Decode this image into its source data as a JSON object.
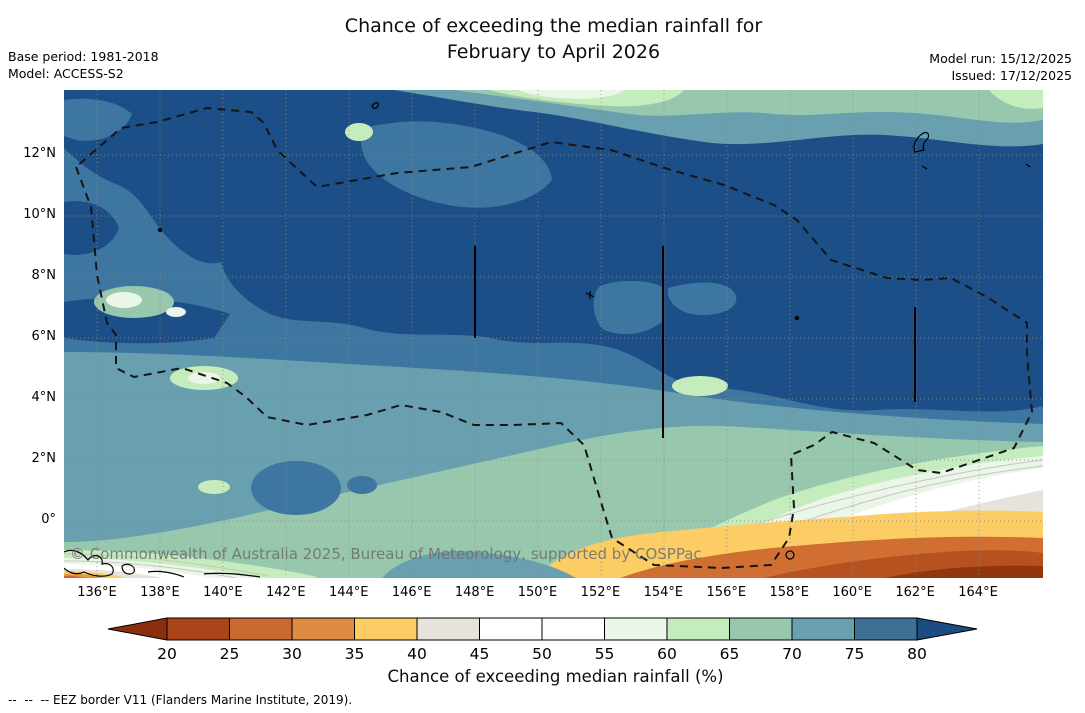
{
  "title": {
    "line1": "Chance of exceeding the median rainfall for",
    "line2": "February to April 2026"
  },
  "meta_left": {
    "base_period": "Base period: 1981-2018",
    "model": "Model: ACCESS-S2"
  },
  "meta_right": {
    "model_run": "Model run: 15/12/2025",
    "issued": "Issued: 17/12/2025"
  },
  "map": {
    "watermark": "© Commonwealth of Australia 2025, Bureau of Meteorology, supported by COSPPac",
    "x_ticks": [
      "136°E",
      "138°E",
      "140°E",
      "142°E",
      "144°E",
      "146°E",
      "148°E",
      "150°E",
      "152°E",
      "154°E",
      "156°E",
      "158°E",
      "160°E",
      "162°E",
      "164°E"
    ],
    "y_ticks": [
      "12°N",
      "10°N",
      "8°N",
      "6°N",
      "4°N",
      "2°N",
      "0°"
    ],
    "border_note": "dashed line = EEZ border, dotted lines = 2-degree graticule"
  },
  "colorbar": {
    "label": "Chance of exceeding median rainfall (%)",
    "ticks": [
      "20",
      "25",
      "30",
      "35",
      "40",
      "45",
      "50",
      "55",
      "60",
      "65",
      "70",
      "75",
      "80"
    ],
    "segment_colors": [
      "#aa4519",
      "#c96a33",
      "#de8c43",
      "#fbcd64",
      "#e6e2dc",
      "#ffffff",
      "#ffffff",
      "#eaf6e8",
      "#c5ecbd",
      "#97c8ae",
      "#68a0af",
      "#3d7095"
    ],
    "below_arrow_color": "#8c2d0b",
    "above_arrow_color": "#1c4c82"
  },
  "footnote": {
    "text": "--  --  -- EEZ border V11 (Flanders Marine Institute, 2019)."
  }
}
